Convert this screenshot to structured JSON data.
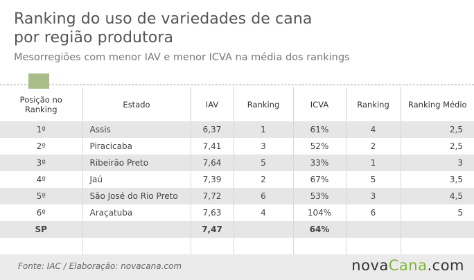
{
  "title_line1": "Ranking do uso de variedades de cana",
  "title_line2": "por região produtora",
  "subtitle": "Mesorregiões com menor IAV e menor ICVA na média dos rankings",
  "headers": {
    "posicao": "Posição no Ranking",
    "estado": "Estado",
    "iav": "IAV",
    "ranking1": "Ranking",
    "icva": "ICVA",
    "ranking2": "Ranking",
    "medio": "Ranking Médio"
  },
  "rows": [
    {
      "pos": "1º",
      "estado": "Assis",
      "iav": "6,37",
      "r1": "1",
      "icva": "61%",
      "r2": "4",
      "medio": "2,5"
    },
    {
      "pos": "2º",
      "estado": "Piracicaba",
      "iav": "7,41",
      "r1": "3",
      "icva": "52%",
      "r2": "2",
      "medio": "2,5"
    },
    {
      "pos": "3º",
      "estado": "Ribeirão Preto",
      "iav": "7,64",
      "r1": "5",
      "icva": "33%",
      "r2": "1",
      "medio": "3"
    },
    {
      "pos": "4º",
      "estado": "Jaú",
      "iav": "7,39",
      "r1": "2",
      "icva": "67%",
      "r2": "5",
      "medio": "3,5"
    },
    {
      "pos": "5º",
      "estado": "São José do Rio Preto",
      "iav": "7,72",
      "r1": "6",
      "icva": "53%",
      "r2": "3",
      "medio": "4,5"
    },
    {
      "pos": "6º",
      "estado": "Araçatuba",
      "iav": "7,63",
      "r1": "4",
      "icva": "104%",
      "r2": "6",
      "medio": "5"
    }
  ],
  "total": {
    "pos": "SP",
    "iav": "7,47",
    "icva": "64%"
  },
  "source": "Fonte: IAC / Elaboração: novacana.com",
  "logo": {
    "part1": "nova",
    "part2": "Cana",
    "part3": ".com"
  },
  "colors": {
    "accent": "#a8bd8a",
    "logo_green": "#7fb53a",
    "row_stripe": "#e6e6e6"
  }
}
